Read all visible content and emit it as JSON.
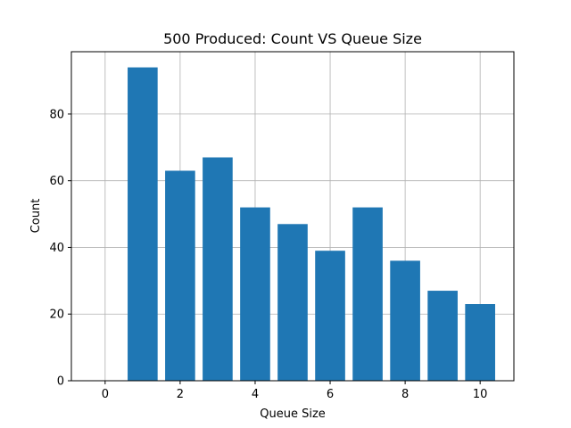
{
  "chart_data": {
    "type": "bar",
    "title": "500 Produced: Count VS Queue Size",
    "xlabel": "Queue Size",
    "ylabel": "Count",
    "x": [
      1,
      2,
      3,
      4,
      5,
      6,
      7,
      8,
      9,
      10
    ],
    "values": [
      94,
      63,
      67,
      52,
      47,
      39,
      52,
      36,
      27,
      23
    ],
    "bar_width": 0.8,
    "xlim": [
      -0.9,
      10.9
    ],
    "ylim": [
      0,
      98.7
    ],
    "xticks": [
      0,
      2,
      4,
      6,
      8,
      10
    ],
    "yticks": [
      0,
      20,
      40,
      60,
      80
    ],
    "grid": true,
    "bar_color": "#1f77b4",
    "grid_color": "#b0b0b0"
  }
}
